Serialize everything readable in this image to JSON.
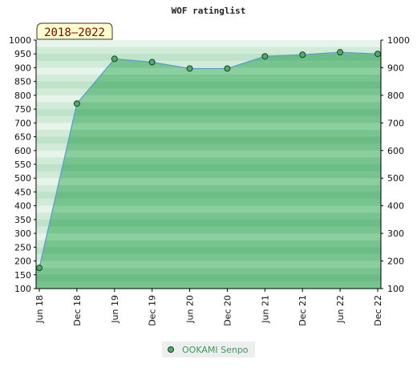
{
  "chart_data": {
    "type": "area",
    "title": "WOF ratinglist",
    "period_label": "2018–2022",
    "categories": [
      "Jun 18",
      "Dec 18",
      "Jun 19",
      "Dec 19",
      "Jun 20",
      "Dec 20",
      "Jun 21",
      "Dec 21",
      "Jun 22",
      "Dec 22"
    ],
    "series": [
      {
        "name": "OOKAMI Senpo",
        "values": [
          175,
          770,
          932,
          920,
          897,
          897,
          941,
          947,
          956,
          950
        ]
      }
    ],
    "ylim": [
      100,
      1000
    ],
    "y_ticks_left": [
      100,
      150,
      200,
      250,
      300,
      350,
      400,
      450,
      500,
      550,
      600,
      650,
      700,
      750,
      800,
      850,
      900,
      950,
      1000
    ],
    "y_ticks_right": [
      100,
      200,
      300,
      400,
      500,
      600,
      700,
      800,
      900,
      1000
    ],
    "legend_position": "bottom-center",
    "colors": {
      "area_fill": "#7cc593",
      "line": "#5b9fd0",
      "marker": "#4cae66",
      "marker_stroke": "#1d3d26",
      "period_bg": "#ffffcc",
      "period_text": "#800000"
    }
  }
}
